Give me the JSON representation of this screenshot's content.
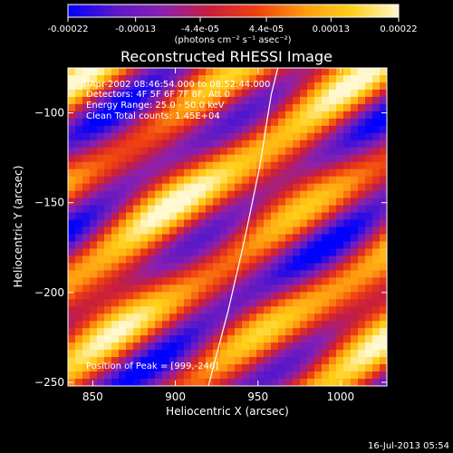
{
  "colorbar": {
    "tick_labels": [
      "-0.00022",
      "-0.00013",
      "-4.4e-05",
      "4.4e-05",
      "0.00013",
      "0.00022"
    ],
    "tick_values": [
      -0.00022,
      -0.00013,
      -4.4e-05,
      4.4e-05,
      0.00013,
      0.00022
    ],
    "range": [
      -0.00022,
      0.00022
    ],
    "units_label": "(photons cm⁻² s⁻¹ asec⁻²)"
  },
  "chart_data": {
    "type": "heatmap",
    "title": "Reconstructed RHESSI Image",
    "xlabel": "Heliocentric X (arcsec)",
    "ylabel": "Heliocentric Y (arcsec)",
    "xlim": [
      835,
      1028
    ],
    "ylim": [
      -252,
      -75
    ],
    "x_ticks": [
      850,
      900,
      950,
      1000
    ],
    "x_tick_labels": [
      "850",
      "900",
      "950",
      "1000"
    ],
    "y_ticks": [
      -100,
      -150,
      -200,
      -250
    ],
    "y_tick_labels": [
      "−100",
      "−150",
      "−200",
      "−250"
    ],
    "annotations": [
      "8-Apr-2002 08:46:54.000 to 08:52:44.000",
      "Detectors: 4F 5F 6F 7F 8F, Att 0",
      "Energy Range: 25.0 - 50.0 keV",
      "Clean    Total counts: 1.45E+04",
      "Position of Peak = [999,-246]"
    ],
    "peak": [
      999,
      -246
    ],
    "limb_curve": [
      [
        920,
        -252
      ],
      [
        932,
        -210
      ],
      [
        942,
        -170
      ],
      [
        951,
        -130
      ],
      [
        958,
        -90
      ],
      [
        962,
        -75
      ]
    ],
    "colormap": [
      "#0000ff",
      "#5a18c8",
      "#8a20b0",
      "#c81e3c",
      "#f04010",
      "#ff9a10",
      "#ffd018",
      "#fff8d0"
    ]
  },
  "footer": {
    "timestamp": "16-Jul-2013 05:54"
  }
}
